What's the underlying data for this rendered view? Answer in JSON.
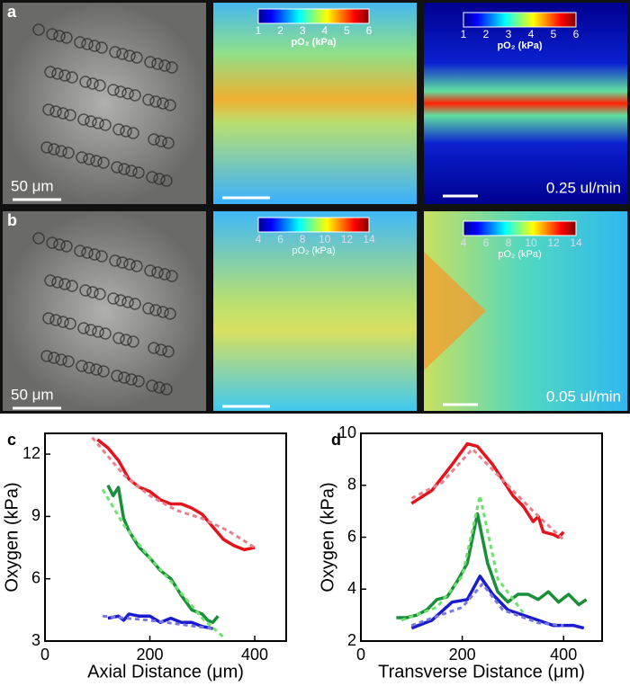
{
  "panels": {
    "a": {
      "label": "a",
      "scalebar": "50 μm",
      "flow": "0.25 ul/min",
      "colorbar": {
        "label": "pO₂ (kPa)",
        "lim": [
          1,
          6
        ],
        "ticks": [
          1,
          2,
          3,
          4,
          5,
          6
        ]
      }
    },
    "b": {
      "label": "b",
      "scalebar": "50 μm",
      "flow": "0.05 ul/min",
      "colorbar": {
        "label": "pO₂ (kPa)",
        "lim": [
          4,
          14
        ],
        "ticks": [
          4,
          6,
          8,
          10,
          12,
          14
        ]
      }
    }
  },
  "chart_data": [
    {
      "type": "line",
      "label": "c",
      "x_label": "Axial Distance (μm)",
      "y_label": "Oxygen (kPa)",
      "xlim": [
        0,
        460
      ],
      "ylim": [
        3,
        13
      ],
      "xticks": [
        0,
        200,
        400
      ],
      "yticks": [
        3,
        6,
        9,
        12
      ],
      "series": [
        {
          "color": "#e4141c",
          "style": "solid",
          "x": [
            100,
            120,
            140,
            160,
            180,
            200,
            220,
            240,
            260,
            280,
            300,
            320,
            340,
            360,
            380,
            400
          ],
          "values": [
            12.7,
            12.3,
            11.7,
            10.8,
            10.4,
            10.2,
            9.8,
            9.6,
            9.6,
            9.4,
            9.1,
            8.5,
            7.9,
            7.6,
            7.4,
            7.5
          ]
        },
        {
          "color": "#e8808e",
          "style": "dashed",
          "x": [
            90,
            150,
            200,
            250,
            300,
            350,
            400
          ],
          "values": [
            12.8,
            11,
            10,
            9.3,
            8.9,
            8.3,
            7.5
          ]
        },
        {
          "color": "#1a8f3a",
          "style": "solid",
          "x": [
            120,
            130,
            140,
            150,
            160,
            180,
            200,
            220,
            240,
            260,
            280,
            300,
            310,
            320,
            330
          ],
          "values": [
            10.5,
            10,
            10.4,
            8.9,
            8.3,
            7.5,
            7.0,
            6.4,
            6.0,
            5.2,
            4.5,
            4.3,
            4.0,
            3.9,
            4.2
          ]
        },
        {
          "color": "#70e070",
          "style": "dashed",
          "x": [
            110,
            150,
            200,
            250,
            300,
            340
          ],
          "values": [
            10.3,
            8.6,
            7.0,
            5.6,
            4.1,
            3.2
          ]
        },
        {
          "color": "#1a1acf",
          "style": "solid",
          "x": [
            120,
            140,
            150,
            160,
            180,
            200,
            220,
            240,
            260,
            280,
            300,
            320
          ],
          "values": [
            4.1,
            4.2,
            4.0,
            4.3,
            4.2,
            4.2,
            3.9,
            4.1,
            3.9,
            3.9,
            3.7,
            3.6
          ]
        },
        {
          "color": "#7878e0",
          "style": "dashed",
          "x": [
            110,
            200,
            320
          ],
          "values": [
            4.2,
            4.0,
            3.6
          ]
        }
      ]
    },
    {
      "type": "line",
      "label": "d",
      "x_label": "Transverse Distance (μm)",
      "y_label": "Oxygen (kPa)",
      "xlim": [
        0,
        476
      ],
      "ylim": [
        2,
        10
      ],
      "xticks": [
        0,
        200,
        400
      ],
      "yticks": [
        2,
        4,
        6,
        8,
        10
      ],
      "series": [
        {
          "color": "#e4141c",
          "style": "solid",
          "x": [
            100,
            140,
            180,
            210,
            230,
            260,
            280,
            300,
            320,
            340,
            350,
            360,
            380,
            390,
            400
          ],
          "values": [
            7.3,
            7.8,
            8.8,
            9.6,
            9.5,
            8.8,
            8.2,
            7.6,
            7.2,
            6.6,
            6.8,
            6.2,
            6.1,
            6.0,
            6.2
          ]
        },
        {
          "color": "#e8808e",
          "style": "dashed",
          "x": [
            100,
            160,
            220,
            280,
            340,
            400
          ],
          "values": [
            7.5,
            8.1,
            9.4,
            8.2,
            7.0,
            5.9
          ]
        },
        {
          "color": "#1a8f3a",
          "style": "solid",
          "x": [
            70,
            90,
            110,
            130,
            150,
            170,
            190,
            210,
            230,
            250,
            270,
            290,
            310,
            330,
            350,
            370,
            390,
            410,
            430,
            445
          ],
          "values": [
            2.9,
            2.9,
            3.0,
            3.2,
            3.6,
            3.7,
            4.3,
            5.0,
            6.9,
            5.0,
            3.9,
            3.5,
            3.8,
            3.8,
            3.6,
            3.9,
            3.5,
            3.8,
            3.4,
            3.6
          ]
        },
        {
          "color": "#70e070",
          "style": "dashed",
          "x": [
            80,
            150,
            200,
            235,
            270,
            320
          ],
          "values": [
            2.8,
            3.3,
            4.5,
            7.6,
            4.4,
            3.1
          ]
        },
        {
          "color": "#1a1acf",
          "style": "solid",
          "x": [
            100,
            140,
            180,
            210,
            235,
            260,
            290,
            320,
            350,
            380,
            420,
            440
          ],
          "values": [
            2.5,
            2.8,
            3.5,
            3.6,
            4.5,
            3.8,
            3.2,
            3.0,
            2.8,
            2.6,
            2.6,
            2.5
          ]
        },
        {
          "color": "#7878e0",
          "style": "dashed",
          "x": [
            100,
            200,
            240,
            280,
            350,
            400
          ],
          "values": [
            2.6,
            3.3,
            4.2,
            3.2,
            2.7,
            2.6
          ]
        }
      ]
    }
  ]
}
